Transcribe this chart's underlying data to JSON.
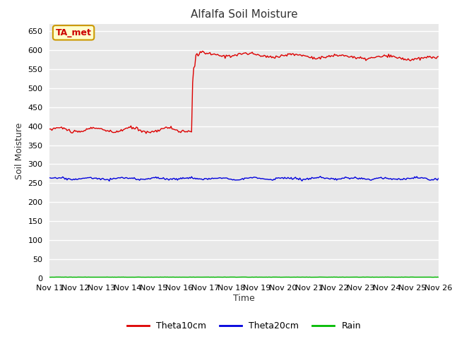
{
  "title": "Alfalfa Soil Moisture",
  "xlabel": "Time",
  "ylabel": "Soil Moisture",
  "annotation_text": "TA_met",
  "annotation_bg": "#ffffcc",
  "annotation_border": "#cc9900",
  "ylim": [
    0,
    670
  ],
  "yticks": [
    0,
    50,
    100,
    150,
    200,
    250,
    300,
    350,
    400,
    450,
    500,
    550,
    600,
    650
  ],
  "xtick_labels": [
    "Nov 11",
    "Nov 12",
    "Nov 13",
    "Nov 14",
    "Nov 15",
    "Nov 16",
    "Nov 17",
    "Nov 18",
    "Nov 19",
    "Nov 20",
    "Nov 21",
    "Nov 22",
    "Nov 23",
    "Nov 24",
    "Nov 25",
    "Nov 26"
  ],
  "fig_bg_color": "#ffffff",
  "plot_bg": "#e8e8e8",
  "grid_color": "#ffffff",
  "line_red_color": "#dd0000",
  "line_blue_color": "#0000dd",
  "line_green_color": "#00bb00",
  "legend_labels": [
    "Theta10cm",
    "Theta20cm",
    "Rain"
  ],
  "legend_colors": [
    "#dd0000",
    "#0000dd",
    "#00bb00"
  ]
}
